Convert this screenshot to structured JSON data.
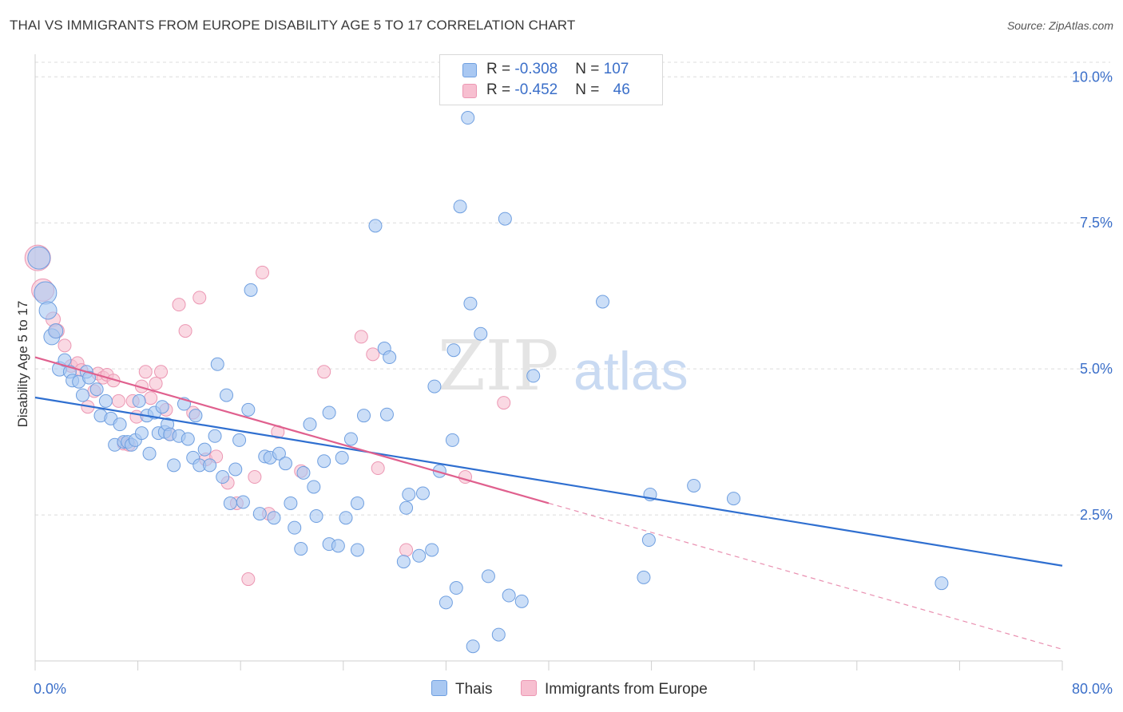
{
  "title": "THAI VS IMMIGRANTS FROM EUROPE DISABILITY AGE 5 TO 17 CORRELATION CHART",
  "source": "Source: ZipAtlas.com",
  "watermark": {
    "zip": "ZIP",
    "atlas": "atlas"
  },
  "legend": {
    "r_label": "R = ",
    "n_label": "N = ",
    "rows": [
      {
        "r": "-0.308",
        "n": "107"
      },
      {
        "r": "-0.452",
        "n": "46"
      }
    ]
  },
  "bottom_legend": [
    "Thais",
    "Immigrants from Europe"
  ],
  "colors": {
    "blue_fill": "#a9c8f2",
    "blue_stroke": "#6f9fe0",
    "blue_line": "#2f6fd0",
    "pink_fill": "#f7bfd0",
    "pink_stroke": "#ec97b3",
    "pink_line": "#e0608e",
    "axis_text": "#3b6fc9"
  },
  "chart_data": {
    "type": "scatter",
    "title": "THAI VS IMMIGRANTS FROM EUROPE DISABILITY AGE 5 TO 17 CORRELATION CHART",
    "xlabel": "",
    "ylabel": "Disability Age 5 to 17",
    "xlim": [
      0,
      80
    ],
    "ylim": [
      0,
      10.25
    ],
    "x_tick_labels": [
      "0.0%",
      "80.0%"
    ],
    "y_ticks": [
      2.5,
      5.0,
      7.5,
      10.0
    ],
    "y_tick_labels": [
      "2.5%",
      "5.0%",
      "7.5%",
      "10.0%"
    ],
    "grid": true,
    "legend_position": "top-center",
    "series": [
      {
        "name": "Thais",
        "r": -0.308,
        "n": 107,
        "trend": {
          "x": [
            0,
            80
          ],
          "y": [
            4.51,
            1.63
          ]
        },
        "points": [
          [
            0.3,
            6.9,
            14
          ],
          [
            0.8,
            6.3,
            14
          ],
          [
            1.0,
            6.0,
            11
          ],
          [
            1.3,
            5.55,
            10
          ],
          [
            1.6,
            5.65,
            9
          ],
          [
            1.9,
            5.0,
            9
          ],
          [
            2.3,
            5.15,
            8
          ],
          [
            2.7,
            4.95,
            8
          ],
          [
            2.9,
            4.8,
            8
          ],
          [
            3.4,
            4.78,
            8
          ],
          [
            3.7,
            4.55,
            8
          ],
          [
            4.0,
            4.95,
            8
          ],
          [
            4.2,
            4.85,
            8
          ],
          [
            4.8,
            4.65,
            8
          ],
          [
            5.1,
            4.2,
            8
          ],
          [
            5.5,
            4.45,
            8
          ],
          [
            5.9,
            4.15,
            8
          ],
          [
            6.2,
            3.7,
            8
          ],
          [
            6.6,
            4.05,
            8
          ],
          [
            6.9,
            3.75,
            8
          ],
          [
            7.2,
            3.75,
            8
          ],
          [
            7.5,
            3.7,
            8
          ],
          [
            7.8,
            3.78,
            8
          ],
          [
            8.1,
            4.45,
            8
          ],
          [
            8.3,
            3.9,
            8
          ],
          [
            8.7,
            4.2,
            8
          ],
          [
            8.9,
            3.55,
            8
          ],
          [
            9.3,
            4.25,
            8
          ],
          [
            9.6,
            3.9,
            8
          ],
          [
            9.9,
            4.35,
            8
          ],
          [
            10.1,
            3.92,
            8
          ],
          [
            10.3,
            4.05,
            8
          ],
          [
            10.5,
            3.88,
            8
          ],
          [
            10.8,
            3.35,
            8
          ],
          [
            11.2,
            3.85,
            8
          ],
          [
            11.6,
            4.4,
            8
          ],
          [
            11.9,
            3.8,
            8
          ],
          [
            12.3,
            3.48,
            8
          ],
          [
            12.5,
            4.2,
            8
          ],
          [
            12.8,
            3.35,
            8
          ],
          [
            13.2,
            3.62,
            8
          ],
          [
            13.6,
            3.35,
            8
          ],
          [
            14.0,
            3.85,
            8
          ],
          [
            14.2,
            5.08,
            8
          ],
          [
            14.6,
            3.15,
            8
          ],
          [
            14.9,
            4.55,
            8
          ],
          [
            15.2,
            2.7,
            8
          ],
          [
            15.6,
            3.28,
            8
          ],
          [
            15.9,
            3.78,
            8
          ],
          [
            16.2,
            2.72,
            8
          ],
          [
            16.6,
            4.3,
            8
          ],
          [
            16.8,
            6.35,
            8
          ],
          [
            17.5,
            2.52,
            8
          ],
          [
            17.9,
            3.5,
            8
          ],
          [
            18.3,
            3.48,
            8
          ],
          [
            18.6,
            2.45,
            8
          ],
          [
            19.0,
            3.55,
            8
          ],
          [
            19.5,
            3.38,
            8
          ],
          [
            19.9,
            2.7,
            8
          ],
          [
            20.2,
            2.28,
            8
          ],
          [
            20.7,
            1.92,
            8
          ],
          [
            20.9,
            3.22,
            8
          ],
          [
            21.4,
            4.05,
            8
          ],
          [
            21.7,
            2.98,
            8
          ],
          [
            21.9,
            2.48,
            8
          ],
          [
            22.5,
            3.42,
            8
          ],
          [
            22.9,
            4.25,
            8
          ],
          [
            22.9,
            2.0,
            8
          ],
          [
            23.6,
            1.97,
            8
          ],
          [
            23.9,
            3.48,
            8
          ],
          [
            24.2,
            2.45,
            8
          ],
          [
            24.6,
            3.8,
            8
          ],
          [
            25.1,
            2.7,
            8
          ],
          [
            25.1,
            1.9,
            8
          ],
          [
            25.6,
            4.2,
            8
          ],
          [
            26.5,
            7.45,
            8
          ],
          [
            27.2,
            5.35,
            8
          ],
          [
            27.4,
            4.22,
            8
          ],
          [
            27.6,
            5.2,
            8
          ],
          [
            28.7,
            1.7,
            8
          ],
          [
            28.9,
            2.62,
            8
          ],
          [
            29.1,
            2.85,
            8
          ],
          [
            29.9,
            1.8,
            8
          ],
          [
            30.2,
            2.87,
            8
          ],
          [
            30.9,
            1.9,
            8
          ],
          [
            31.1,
            4.7,
            8
          ],
          [
            31.5,
            3.25,
            8
          ],
          [
            32.0,
            1.0,
            8
          ],
          [
            32.5,
            3.78,
            8
          ],
          [
            32.6,
            5.32,
            8
          ],
          [
            32.8,
            1.25,
            8
          ],
          [
            33.1,
            7.78,
            8
          ],
          [
            33.7,
            9.3,
            8
          ],
          [
            33.9,
            6.12,
            8
          ],
          [
            34.1,
            0.25,
            8
          ],
          [
            34.7,
            5.6,
            8
          ],
          [
            35.3,
            1.45,
            8
          ],
          [
            36.1,
            0.45,
            8
          ],
          [
            36.6,
            7.57,
            8
          ],
          [
            36.9,
            1.12,
            8
          ],
          [
            37.9,
            1.02,
            8
          ],
          [
            38.8,
            4.88,
            8
          ],
          [
            44.2,
            6.15,
            8
          ],
          [
            47.4,
            1.43,
            8
          ],
          [
            47.8,
            2.07,
            8
          ],
          [
            47.9,
            2.85,
            8
          ],
          [
            51.3,
            3.0,
            8
          ],
          [
            54.4,
            2.78,
            8
          ],
          [
            70.6,
            1.33,
            8
          ]
        ]
      },
      {
        "name": "Immigrants from Europe",
        "r": -0.452,
        "n": 46,
        "trend": {
          "x": [
            0,
            40
          ],
          "y": [
            5.2,
            2.7
          ]
        },
        "trend_dashed": {
          "x": [
            40,
            80
          ],
          "y": [
            2.7,
            0.2
          ]
        },
        "points": [
          [
            0.2,
            6.9,
            16
          ],
          [
            0.6,
            6.35,
            14
          ],
          [
            1.4,
            5.85,
            9
          ],
          [
            1.7,
            5.65,
            9
          ],
          [
            2.3,
            5.4,
            8
          ],
          [
            2.8,
            5.05,
            8
          ],
          [
            3.3,
            5.1,
            8
          ],
          [
            3.6,
            4.98,
            8
          ],
          [
            4.1,
            4.35,
            8
          ],
          [
            4.6,
            4.62,
            8
          ],
          [
            4.9,
            4.92,
            8
          ],
          [
            5.3,
            4.85,
            8
          ],
          [
            5.6,
            4.9,
            8
          ],
          [
            6.1,
            4.8,
            8
          ],
          [
            6.5,
            4.45,
            8
          ],
          [
            6.9,
            3.72,
            8
          ],
          [
            7.3,
            3.7,
            8
          ],
          [
            7.6,
            4.45,
            8
          ],
          [
            7.9,
            4.18,
            8
          ],
          [
            8.3,
            4.7,
            8
          ],
          [
            8.6,
            4.95,
            8
          ],
          [
            9.0,
            4.5,
            8
          ],
          [
            9.4,
            4.75,
            8
          ],
          [
            9.8,
            4.95,
            8
          ],
          [
            10.2,
            4.3,
            8
          ],
          [
            10.5,
            3.88,
            8
          ],
          [
            11.2,
            6.1,
            8
          ],
          [
            11.7,
            5.65,
            8
          ],
          [
            12.3,
            4.25,
            8
          ],
          [
            12.8,
            6.22,
            8
          ],
          [
            13.3,
            3.45,
            8
          ],
          [
            14.1,
            3.5,
            8
          ],
          [
            15.0,
            3.05,
            8
          ],
          [
            15.7,
            2.7,
            8
          ],
          [
            16.6,
            1.4,
            8
          ],
          [
            17.1,
            3.15,
            8
          ],
          [
            17.7,
            6.65,
            8
          ],
          [
            18.2,
            2.52,
            8
          ],
          [
            18.9,
            3.92,
            8
          ],
          [
            20.7,
            3.25,
            8
          ],
          [
            22.5,
            4.95,
            8
          ],
          [
            25.4,
            5.55,
            8
          ],
          [
            26.3,
            5.25,
            8
          ],
          [
            26.7,
            3.3,
            8
          ],
          [
            28.9,
            1.9,
            8
          ],
          [
            33.5,
            3.15,
            8
          ],
          [
            36.5,
            4.42,
            8
          ]
        ]
      }
    ]
  }
}
